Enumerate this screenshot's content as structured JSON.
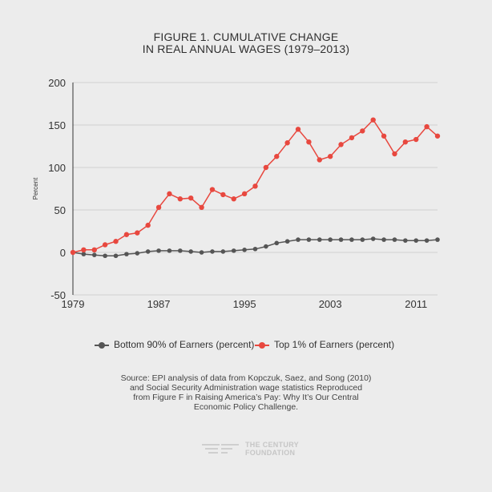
{
  "title_lines": [
    "FIGURE 1. CUMULATIVE CHANGE",
    "IN REAL ANNUAL WAGES (1979–2013)"
  ],
  "chart_data": {
    "type": "line",
    "ylabel": "Percent",
    "xlabel": "",
    "ylim": [
      -50,
      200
    ],
    "xlim": [
      1979,
      2013
    ],
    "y_ticks": [
      200,
      150,
      100,
      50,
      0,
      -50
    ],
    "x_ticks": [
      1979,
      1987,
      1995,
      2003,
      2011
    ],
    "grid": "horizontal",
    "legend_position": "bottom-center",
    "x": [
      1979,
      1980,
      1981,
      1982,
      1983,
      1984,
      1985,
      1986,
      1987,
      1988,
      1989,
      1990,
      1991,
      1992,
      1993,
      1994,
      1995,
      1996,
      1997,
      1998,
      1999,
      2000,
      2001,
      2002,
      2003,
      2004,
      2005,
      2006,
      2007,
      2008,
      2009,
      2010,
      2011,
      2012,
      2013
    ],
    "series": [
      {
        "name": "Bottom 90% of Earners (percent)",
        "color": "#555555",
        "values": [
          0,
          -2,
          -3,
          -4,
          -4,
          -2,
          -1,
          1,
          2,
          2,
          2,
          1,
          0,
          1,
          1,
          2,
          3,
          4,
          7,
          11,
          13,
          15,
          15,
          15,
          15,
          15,
          15,
          15,
          16,
          15,
          15,
          14,
          14,
          14,
          15
        ]
      },
      {
        "name": "Top 1% of Earners (percent)",
        "color": "#e8483f",
        "values": [
          0,
          3,
          3,
          9,
          13,
          21,
          23,
          32,
          53,
          69,
          63,
          64,
          53,
          74,
          68,
          63,
          69,
          78,
          100,
          113,
          129,
          145,
          130,
          109,
          113,
          127,
          135,
          143,
          156,
          137,
          116,
          130,
          133,
          148,
          137
        ]
      }
    ]
  },
  "legend": [
    {
      "label": "Bottom 90% of Earners (percent)",
      "color": "#555555"
    },
    {
      "label": "Top 1% of Earners (percent)",
      "color": "#e8483f"
    }
  ],
  "source_lines": [
    "Source: EPI analysis of data from Kopczuk, Saez, and Song (2010)",
    "and Social Security Administration wage statistics Reproduced",
    "from Figure F in Raising America’s Pay: Why It’s Our Central",
    "Economic Policy Challenge."
  ],
  "logo": {
    "line1": "THE CENTURY",
    "line2": "FOUNDATION",
    "icon": "century-foundation-logo-icon"
  }
}
